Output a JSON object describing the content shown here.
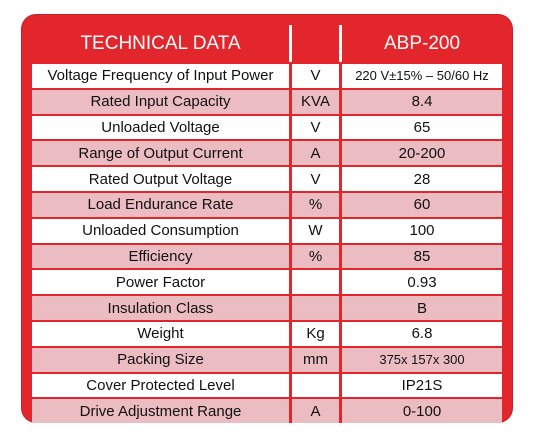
{
  "header": {
    "title": "TECHNICAL DATA",
    "unit": "",
    "model": "ABP-200"
  },
  "rows": [
    {
      "param": "Voltage Frequency of Input Power",
      "unit": "V",
      "value": "220 V±15% – 50/60 Hz"
    },
    {
      "param": "Rated Input Capacity",
      "unit": "KVA",
      "value": "8.4"
    },
    {
      "param": "Unloaded Voltage",
      "unit": "V",
      "value": "65"
    },
    {
      "param": "Range of Output Current",
      "unit": "A",
      "value": "20-200"
    },
    {
      "param": "Rated Output Voltage",
      "unit": "V",
      "value": "28"
    },
    {
      "param": "Load Endurance Rate",
      "unit": "%",
      "value": "60"
    },
    {
      "param": "Unloaded Consumption",
      "unit": "W",
      "value": "100"
    },
    {
      "param": "Efficiency",
      "unit": "%",
      "value": "85"
    },
    {
      "param": "Power Factor",
      "unit": "",
      "value": "0.93"
    },
    {
      "param": "Insulation Class",
      "unit": "",
      "value": "B"
    },
    {
      "param": "Weight",
      "unit": "Kg",
      "value": "6.8"
    },
    {
      "param": "Packing Size",
      "unit": "mm",
      "value": "375x 157x 300"
    },
    {
      "param": "Cover Protected Level",
      "unit": "",
      "value": "IP21S"
    },
    {
      "param": "Drive Adjustment Range",
      "unit": "A",
      "value": "0-100"
    }
  ],
  "colors": {
    "frame": "#e3262c",
    "row_alt": "#ebbcc1",
    "row_plain": "#ffffff"
  }
}
